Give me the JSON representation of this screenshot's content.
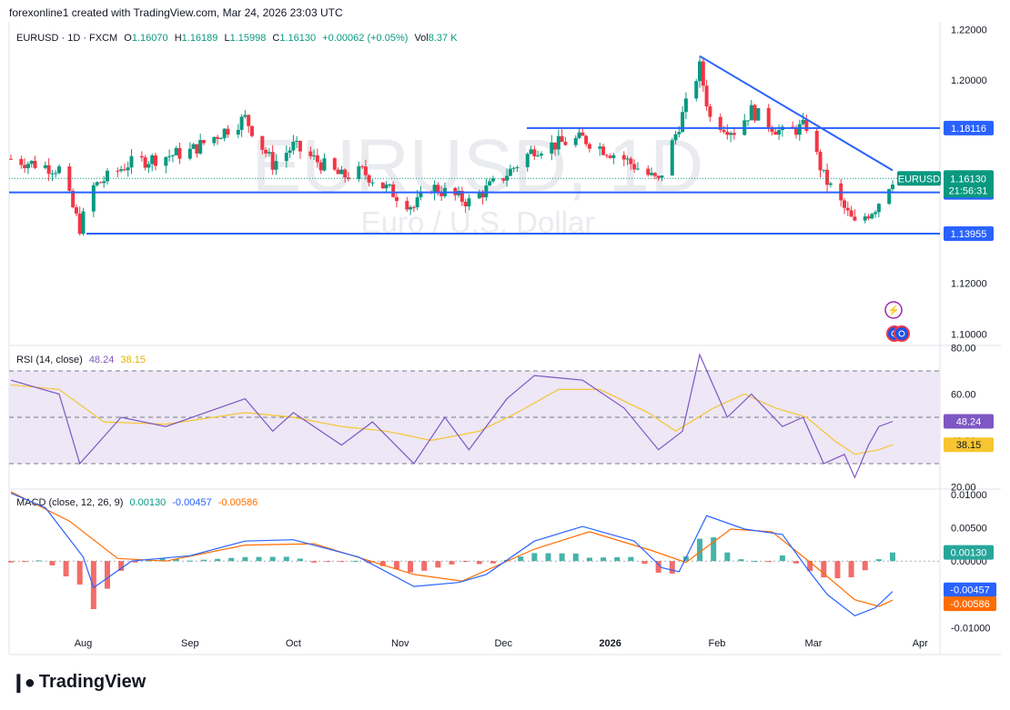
{
  "header": "forexonline1 created with TradingView.com, Mar 24, 2026 23:03 UTC",
  "brand": "TradingView",
  "brand_logo": "tradingview-logo",
  "symbol_line": {
    "name": "EURUSD · 1D · FXCM",
    "o_label": "O",
    "o": "1.16070",
    "h_label": "H",
    "h": "1.16189",
    "l_label": "L",
    "l": "1.15998",
    "c_label": "C",
    "c": "1.16130",
    "change": "+0.00062 (+0.05%)",
    "vol_label": "Vol",
    "vol": "8.37 K"
  },
  "watermark": {
    "main": "EURUSD, 1D",
    "sub": "Euro / U.S. Dollar"
  },
  "colors": {
    "up": "#089981",
    "down": "#f23645",
    "line": "#2962ff",
    "rsi": "#7e57c2",
    "rsi_ma": "#f7c531",
    "macd": "#2962ff",
    "signal": "#ff6d00",
    "rsi_band": "#ede7f6"
  },
  "price_tags": {
    "symbol": "EURUSD",
    "price": "1.16130",
    "countdown": "21:56:31",
    "levels": [
      "1.18116",
      "1.15581",
      "1.13955"
    ]
  },
  "icons": [
    "lightning-icon",
    "globe-icon"
  ],
  "rsi_legend": {
    "label": "RSI (14, close)",
    "value": "48.24",
    "ma": "38.15"
  },
  "macd_legend": {
    "label": "MACD (close, 12, 26, 9)",
    "hist": "0.00130",
    "macd": "-0.00457",
    "signal": "-0.00586"
  },
  "chart_data": [
    {
      "type": "candlestick",
      "title": "EURUSD, 1D",
      "x_ticks": [
        "Aug",
        "Sep",
        "Oct",
        "Nov",
        "Dec",
        "2026",
        "Feb",
        "Mar",
        "Apr"
      ],
      "y_ticks": [
        "1.22000",
        "1.20000",
        "1.18000",
        "1.16000",
        "1.14000",
        "1.12000",
        "1.10000"
      ],
      "ylim": [
        1.0955,
        1.223
      ],
      "start_date": "2025-07-11",
      "end_date": "2026-03-24",
      "horizontal_lines": [
        1.18116,
        1.15581,
        1.13955
      ],
      "trendline": {
        "from": [
          "2026-01-27",
          1.2095
        ],
        "to": [
          "2026-03-24",
          1.1645
        ]
      },
      "key_points": [
        [
          "2025-07-11",
          1.169
        ],
        [
          "2025-07-25",
          1.165
        ],
        [
          "2025-07-31",
          1.142
        ],
        [
          "2025-08-04",
          1.158
        ],
        [
          "2025-08-14",
          1.167
        ],
        [
          "2025-09-01",
          1.172
        ],
        [
          "2025-09-17",
          1.185
        ],
        [
          "2025-09-25",
          1.167
        ],
        [
          "2025-10-01",
          1.174
        ],
        [
          "2025-10-15",
          1.162
        ],
        [
          "2025-10-21",
          1.164
        ],
        [
          "2025-11-05",
          1.15
        ],
        [
          "2025-11-10",
          1.158
        ],
        [
          "2025-11-21",
          1.152
        ],
        [
          "2025-12-01",
          1.162
        ],
        [
          "2025-12-10",
          1.173
        ],
        [
          "2025-12-24",
          1.177
        ],
        [
          "2026-01-05",
          1.169
        ],
        [
          "2026-01-15",
          1.16
        ],
        [
          "2026-01-27",
          1.205
        ],
        [
          "2026-01-30",
          1.185
        ],
        [
          "2026-02-06",
          1.18
        ],
        [
          "2026-02-11",
          1.188
        ],
        [
          "2026-02-20",
          1.179
        ],
        [
          "2026-02-27",
          1.182
        ],
        [
          "2026-03-04",
          1.162
        ],
        [
          "2026-03-13",
          1.143
        ],
        [
          "2026-03-19",
          1.15
        ],
        [
          "2026-03-24",
          1.1613
        ]
      ]
    },
    {
      "type": "line",
      "title": "RSI (14, close)",
      "y_ticks": [
        "80.00",
        "60.00",
        "40.00",
        "20.00"
      ],
      "ylim": [
        19,
        81
      ],
      "band": [
        30,
        70
      ],
      "series": [
        {
          "name": "RSI",
          "points": [
            [
              "2025-07-11",
              66
            ],
            [
              "2025-07-25",
              60
            ],
            [
              "2025-07-31",
              30
            ],
            [
              "2025-08-12",
              50
            ],
            [
              "2025-08-25",
              46
            ],
            [
              "2025-09-17",
              58
            ],
            [
              "2025-09-25",
              44
            ],
            [
              "2025-10-01",
              52
            ],
            [
              "2025-10-15",
              38
            ],
            [
              "2025-10-24",
              48
            ],
            [
              "2025-11-05",
              30
            ],
            [
              "2025-11-14",
              50
            ],
            [
              "2025-11-21",
              36
            ],
            [
              "2025-12-02",
              58
            ],
            [
              "2025-12-10",
              68
            ],
            [
              "2025-12-24",
              66
            ],
            [
              "2026-01-05",
              54
            ],
            [
              "2026-01-15",
              36
            ],
            [
              "2026-01-22",
              44
            ],
            [
              "2026-01-27",
              77
            ],
            [
              "2026-02-04",
              50
            ],
            [
              "2026-02-11",
              60
            ],
            [
              "2026-02-20",
              46
            ],
            [
              "2026-02-26",
              50
            ],
            [
              "2026-03-04",
              30
            ],
            [
              "2026-03-10",
              34
            ],
            [
              "2026-03-13",
              24
            ],
            [
              "2026-03-17",
              38
            ],
            [
              "2026-03-20",
              46
            ],
            [
              "2026-03-24",
              48.24
            ]
          ]
        },
        {
          "name": "RSI-based MA",
          "points": [
            [
              "2025-07-11",
              64
            ],
            [
              "2025-07-25",
              62
            ],
            [
              "2025-08-07",
              48
            ],
            [
              "2025-08-25",
              47
            ],
            [
              "2025-09-17",
              52
            ],
            [
              "2025-10-01",
              50
            ],
            [
              "2025-10-15",
              46
            ],
            [
              "2025-10-28",
              44
            ],
            [
              "2025-11-10",
              40
            ],
            [
              "2025-11-24",
              44
            ],
            [
              "2025-12-05",
              52
            ],
            [
              "2025-12-17",
              62
            ],
            [
              "2025-12-29",
              62
            ],
            [
              "2026-01-12",
              52
            ],
            [
              "2026-01-20",
              44
            ],
            [
              "2026-01-31",
              54
            ],
            [
              "2026-02-09",
              60
            ],
            [
              "2026-02-18",
              54
            ],
            [
              "2026-02-27",
              50
            ],
            [
              "2026-03-07",
              40
            ],
            [
              "2026-03-13",
              34
            ],
            [
              "2026-03-20",
              36
            ],
            [
              "2026-03-24",
              38.15
            ]
          ]
        }
      ]
    },
    {
      "type": "line",
      "title": "MACD (close, 12, 26, 9)",
      "y_ticks": [
        "0.01000",
        "0.00500",
        "0.00000",
        "-0.00500",
        "-0.01000"
      ],
      "ylim": [
        -0.0102,
        0.0108
      ],
      "series": [
        {
          "name": "MACD",
          "points": [
            [
              "2025-07-11",
              0.0102
            ],
            [
              "2025-07-21",
              0.008
            ],
            [
              "2025-08-01",
              0.0006
            ],
            [
              "2025-08-04",
              -0.004
            ],
            [
              "2025-08-15",
              0.0
            ],
            [
              "2025-09-01",
              0.0008
            ],
            [
              "2025-09-17",
              0.003
            ],
            [
              "2025-10-01",
              0.0032
            ],
            [
              "2025-10-20",
              0.0006
            ],
            [
              "2025-11-05",
              -0.0038
            ],
            [
              "2025-11-18",
              -0.0032
            ],
            [
              "2025-11-26",
              -0.002
            ],
            [
              "2025-12-10",
              0.003
            ],
            [
              "2025-12-24",
              0.0052
            ],
            [
              "2026-01-08",
              0.003
            ],
            [
              "2026-01-16",
              -0.001
            ],
            [
              "2026-01-21",
              -0.0016
            ],
            [
              "2026-01-29",
              0.0068
            ],
            [
              "2026-02-09",
              0.0048
            ],
            [
              "2026-02-20",
              0.004
            ],
            [
              "2026-02-27",
              -0.001
            ],
            [
              "2026-03-05",
              -0.005
            ],
            [
              "2026-03-13",
              -0.0082
            ],
            [
              "2026-03-19",
              -0.007
            ],
            [
              "2026-03-24",
              -0.00457
            ]
          ]
        },
        {
          "name": "Signal",
          "points": [
            [
              "2025-07-11",
              0.0104
            ],
            [
              "2025-07-28",
              0.006
            ],
            [
              "2025-08-11",
              0.0004
            ],
            [
              "2025-08-25",
              0.0
            ],
            [
              "2025-09-17",
              0.0024
            ],
            [
              "2025-10-07",
              0.0026
            ],
            [
              "2025-11-05",
              -0.002
            ],
            [
              "2025-11-19",
              -0.003
            ],
            [
              "2025-12-10",
              0.0018
            ],
            [
              "2025-12-26",
              0.0044
            ],
            [
              "2026-01-13",
              0.0016
            ],
            [
              "2026-01-23",
              -0.0002
            ],
            [
              "2026-02-05",
              0.0048
            ],
            [
              "2026-02-17",
              0.0044
            ],
            [
              "2026-03-02",
              -0.001
            ],
            [
              "2026-03-13",
              -0.0058
            ],
            [
              "2026-03-20",
              -0.0068
            ],
            [
              "2026-03-24",
              -0.00586
            ]
          ]
        }
      ]
    }
  ]
}
